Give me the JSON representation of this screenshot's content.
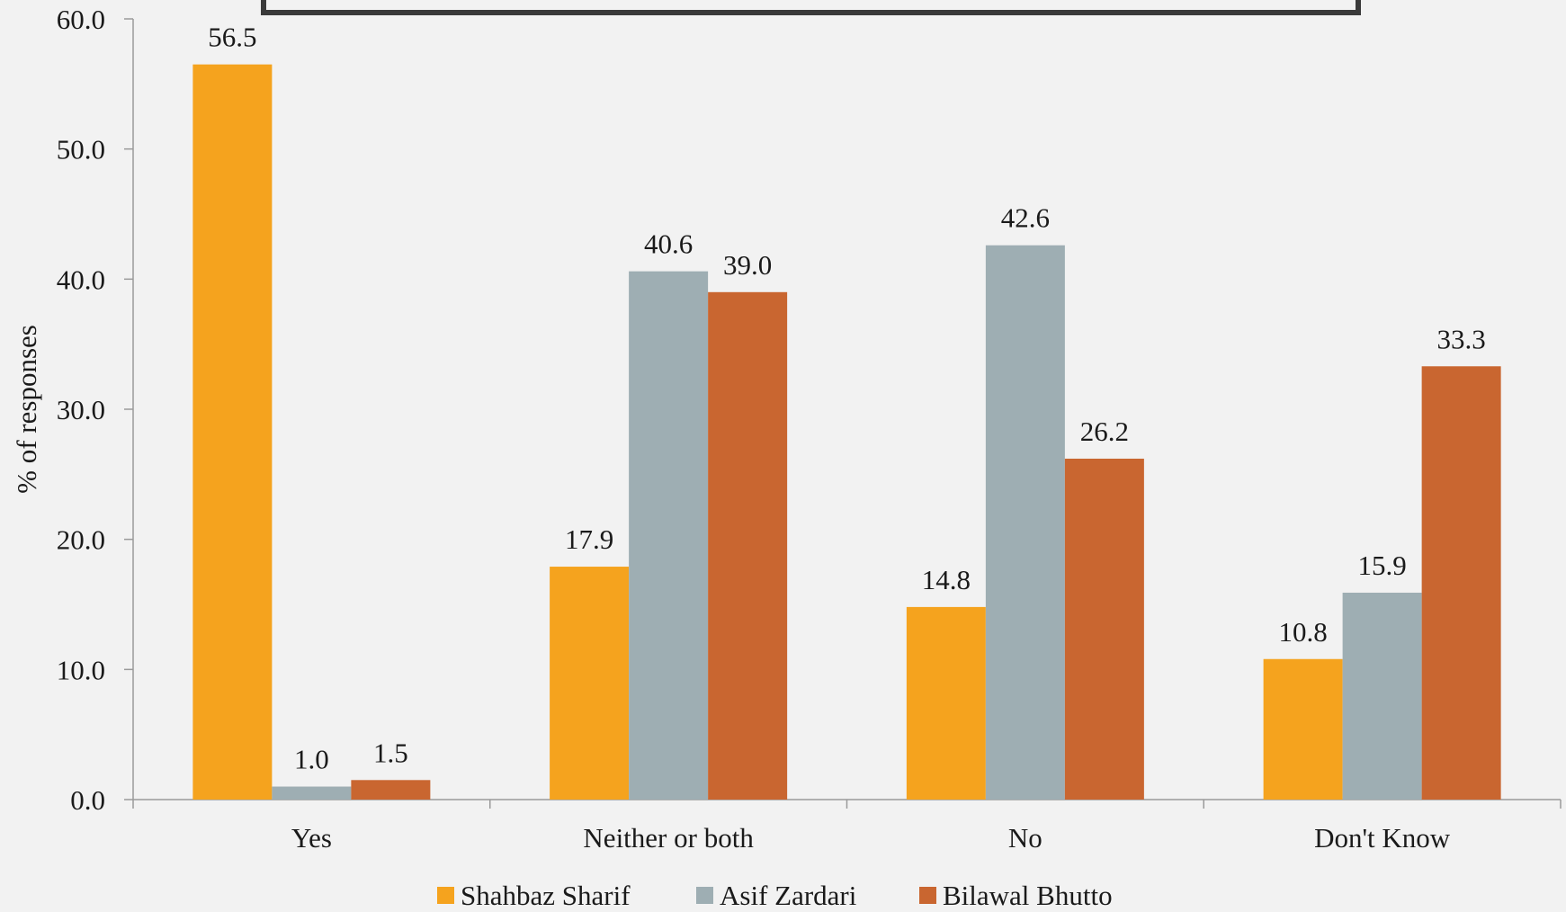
{
  "chart_data": {
    "type": "bar",
    "title": "",
    "xlabel": "",
    "ylabel": "% of responses",
    "ylim": [
      0,
      60
    ],
    "yticks": [
      "0.0",
      "10.0",
      "20.0",
      "30.0",
      "40.0",
      "50.0",
      "60.0"
    ],
    "categories": [
      "Yes",
      "Neither or both",
      "No",
      "Don't Know"
    ],
    "series": [
      {
        "name": "Shahbaz Sharif",
        "color": "#f5a31e",
        "values": [
          56.5,
          17.9,
          14.8,
          10.8
        ],
        "labels": [
          "56.5",
          "17.9",
          "14.8",
          "10.8"
        ]
      },
      {
        "name": "Asif Zardari",
        "color": "#9eaeb3",
        "values": [
          1.0,
          40.6,
          42.6,
          15.9
        ],
        "labels": [
          "1.0",
          "40.6",
          "42.6",
          "15.9"
        ]
      },
      {
        "name": "Bilawal Bhutto",
        "color": "#c96630",
        "values": [
          1.5,
          39.0,
          26.2,
          33.3
        ],
        "labels": [
          "1.5",
          "39.0",
          "26.2",
          "33.3"
        ]
      }
    ],
    "grid": false,
    "legend": "bottom-center",
    "colors": {
      "axis": "#9a9a9a",
      "frame": "#3a3a3a",
      "background": "#f2f2f2"
    }
  }
}
